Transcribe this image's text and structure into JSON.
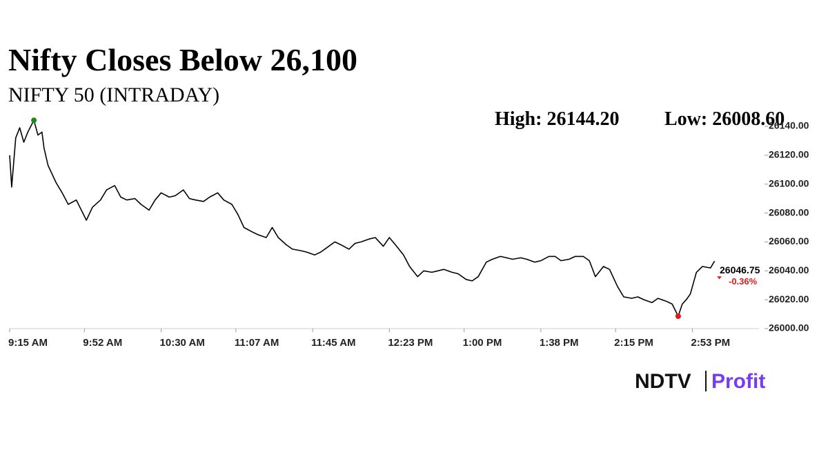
{
  "chart_data": {
    "type": "line",
    "title": "Nifty Closes Below 26,100",
    "subtitle": "NIFTY 50 (INTRADAY)",
    "annotations": [
      "High: 26144.20",
      "Low: 26008.60"
    ],
    "last_label": "26046.75",
    "change_label": "-0.36%",
    "brand": [
      "NDTV",
      "Profit"
    ],
    "xlim": [
      555,
      926
    ],
    "ylim": [
      26000,
      26140
    ],
    "xticks": [
      {
        "value": 555,
        "label": "9:15 AM"
      },
      {
        "value": 592,
        "label": "9:52 AM"
      },
      {
        "value": 630,
        "label": "10:30 AM"
      },
      {
        "value": 667,
        "label": "11:07 AM"
      },
      {
        "value": 705,
        "label": "11:45 AM"
      },
      {
        "value": 743,
        "label": "12:23 PM"
      },
      {
        "value": 780,
        "label": "1:00 PM"
      },
      {
        "value": 818,
        "label": "1:38 PM"
      },
      {
        "value": 855,
        "label": "2:15 PM"
      },
      {
        "value": 893,
        "label": "2:53 PM"
      }
    ],
    "yticks": [
      {
        "value": 26000,
        "label": "26000.00"
      },
      {
        "value": 26020,
        "label": "26020.00"
      },
      {
        "value": 26040,
        "label": "26040.00"
      },
      {
        "value": 26060,
        "label": "26060.00"
      },
      {
        "value": 26080,
        "label": "26080.00"
      },
      {
        "value": 26100,
        "label": "26100.00"
      },
      {
        "value": 26120,
        "label": "26120.00"
      },
      {
        "value": 26140,
        "label": "26140.00"
      }
    ],
    "series": [
      {
        "name": "NIFTY 50",
        "color": "#000000",
        "x": [
          555,
          556,
          558,
          560,
          562,
          564,
          567,
          569,
          571,
          572,
          574,
          578,
          581,
          584,
          588,
          593,
          596,
          600,
          603,
          607,
          610,
          613,
          617,
          620,
          624,
          627,
          630,
          634,
          637,
          641,
          644,
          647,
          651,
          654,
          658,
          661,
          665,
          668,
          671,
          675,
          678,
          682,
          685,
          688,
          692,
          695,
          699,
          702,
          706,
          709,
          712,
          716,
          719,
          723,
          726,
          729,
          733,
          736,
          740,
          743,
          746,
          750,
          753,
          757,
          760,
          764,
          767,
          770,
          774,
          777,
          781,
          784,
          787,
          791,
          794,
          798,
          801,
          804,
          808,
          811,
          815,
          818,
          822,
          825,
          828,
          832,
          835,
          839,
          842,
          845,
          849,
          852,
          856,
          859,
          863,
          866,
          869,
          873,
          876,
          880,
          883,
          886,
          888,
          890,
          892,
          895,
          898,
          902,
          904
        ],
        "values": [
          26120,
          26098,
          26132,
          26139,
          26129,
          26136,
          26144.2,
          26134,
          26136,
          26125,
          26113,
          26101,
          26094,
          26086,
          26089,
          26075,
          26084,
          26089,
          26096,
          26099,
          26091,
          26089,
          26090,
          26086,
          26082,
          26089,
          26094,
          26091,
          26092,
          26096,
          26090,
          26089,
          26088,
          26091,
          26094,
          26089,
          26086,
          26079,
          26070,
          26067,
          26065,
          26063,
          26070,
          26063,
          26058,
          26055,
          26054,
          26053,
          26051,
          26053,
          26056,
          26060,
          26058,
          26055,
          26059,
          26060,
          26062,
          26063,
          26057,
          26063,
          26058,
          26051,
          26043,
          26036,
          26040,
          26039,
          26040,
          26041,
          26039,
          26038,
          26034,
          26033,
          26036,
          26046,
          26048,
          26050,
          26049,
          26048,
          26049,
          26048,
          26046,
          26047,
          26050,
          26050,
          26047,
          26048,
          26050,
          26050,
          26047,
          26036,
          26043,
          26041,
          26029,
          26022,
          26021,
          26022,
          26020,
          26018,
          26021,
          26019,
          26017,
          26008.6,
          26017,
          26020,
          26024,
          26039,
          26043,
          26042,
          26046.75
        ]
      }
    ]
  }
}
